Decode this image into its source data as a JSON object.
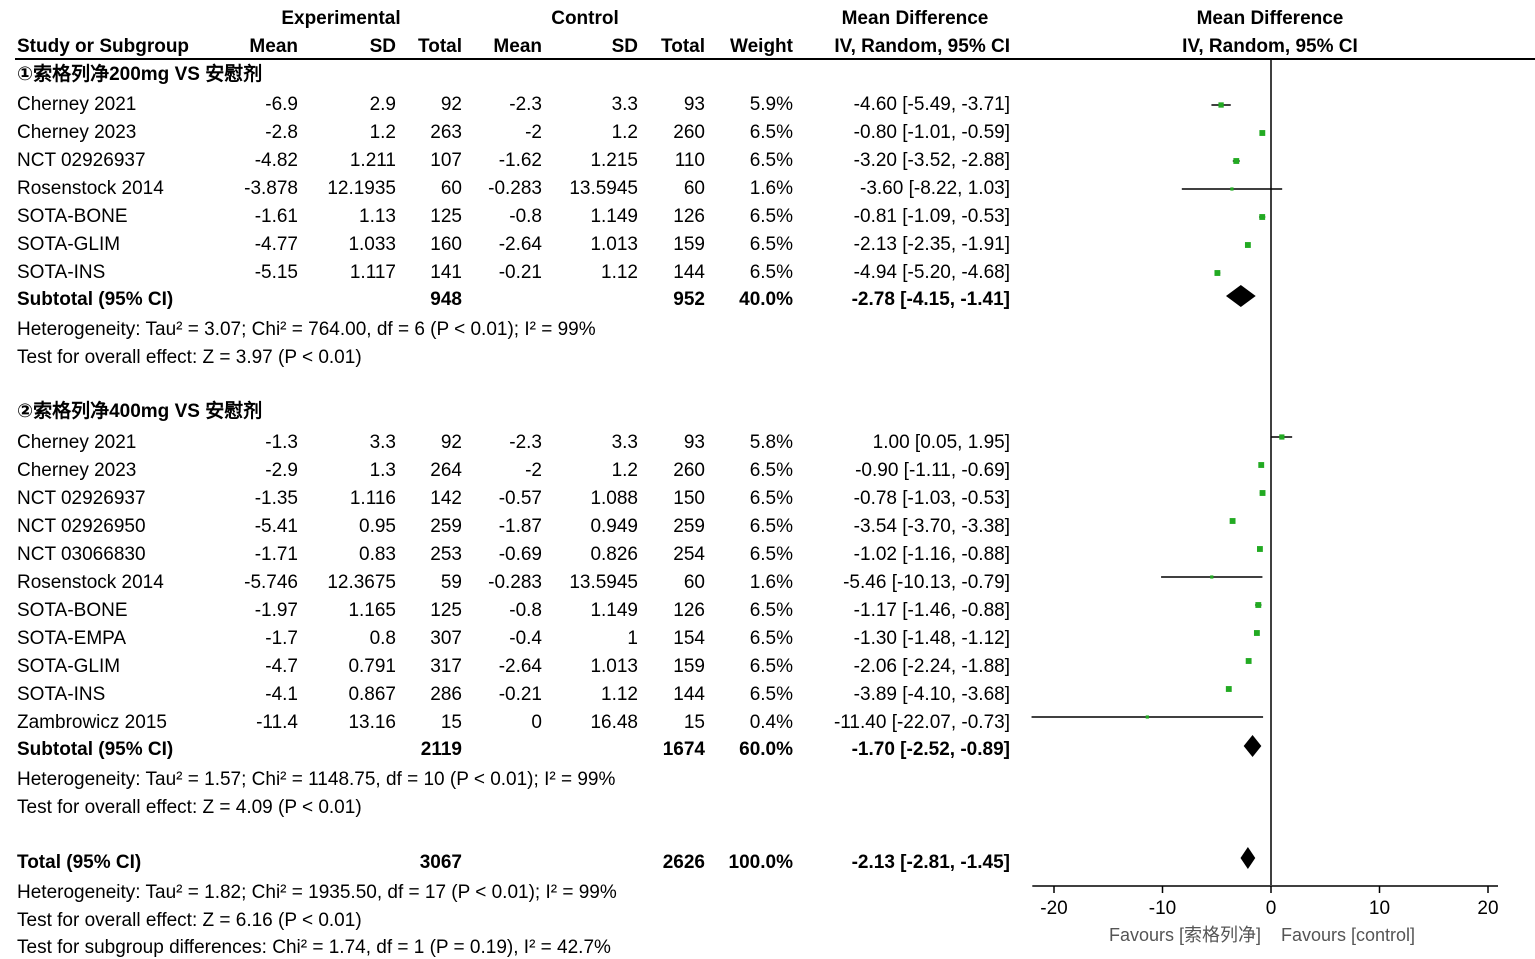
{
  "header": {
    "experimental": "Experimental",
    "control": "Control",
    "md_title": "Mean Difference",
    "plot_title": "Mean Difference",
    "col_study": "Study or Subgroup",
    "col_mean": "Mean",
    "col_sd": "SD",
    "col_total": "Total",
    "col_mean2": "Mean",
    "col_sd2": "SD",
    "col_total2": "Total",
    "col_weight": "Weight",
    "col_method": "IV, Random, 95% CI",
    "plot_method": "IV, Random, 95% CI"
  },
  "groups": [
    {
      "title": "①索格列净200mg VS 安慰剂",
      "studies": [
        {
          "name": "Cherney 2021",
          "e_mean": "-6.9",
          "e_sd": "2.9",
          "e_total": "92",
          "c_mean": "-2.3",
          "c_sd": "3.3",
          "c_total": "93",
          "weight": "5.9%",
          "ci": "-4.60 [-5.49, -3.71]",
          "md": -4.6,
          "lo": -5.49,
          "hi": -3.71
        },
        {
          "name": "Cherney 2023",
          "e_mean": "-2.8",
          "e_sd": "1.2",
          "e_total": "263",
          "c_mean": "-2",
          "c_sd": "1.2",
          "c_total": "260",
          "weight": "6.5%",
          "ci": "-0.80 [-1.01, -0.59]",
          "md": -0.8,
          "lo": -1.01,
          "hi": -0.59
        },
        {
          "name": "NCT 02926937",
          "e_mean": "-4.82",
          "e_sd": "1.211",
          "e_total": "107",
          "c_mean": "-1.62",
          "c_sd": "1.215",
          "c_total": "110",
          "weight": "6.5%",
          "ci": "-3.20 [-3.52, -2.88]",
          "md": -3.2,
          "lo": -3.52,
          "hi": -2.88
        },
        {
          "name": "Rosenstock 2014",
          "e_mean": "-3.878",
          "e_sd": "12.1935",
          "e_total": "60",
          "c_mean": "-0.283",
          "c_sd": "13.5945",
          "c_total": "60",
          "weight": "1.6%",
          "ci": "-3.60 [-8.22, 1.03]",
          "md": -3.6,
          "lo": -8.22,
          "hi": 1.03
        },
        {
          "name": "SOTA-BONE",
          "e_mean": "-1.61",
          "e_sd": "1.13",
          "e_total": "125",
          "c_mean": "-0.8",
          "c_sd": "1.149",
          "c_total": "126",
          "weight": "6.5%",
          "ci": "-0.81 [-1.09, -0.53]",
          "md": -0.81,
          "lo": -1.09,
          "hi": -0.53
        },
        {
          "name": "SOTA-GLIM",
          "e_mean": "-4.77",
          "e_sd": "1.033",
          "e_total": "160",
          "c_mean": "-2.64",
          "c_sd": "1.013",
          "c_total": "159",
          "weight": "6.5%",
          "ci": "-2.13 [-2.35, -1.91]",
          "md": -2.13,
          "lo": -2.35,
          "hi": -1.91
        },
        {
          "name": "SOTA-INS",
          "e_mean": "-5.15",
          "e_sd": "1.117",
          "e_total": "141",
          "c_mean": "-0.21",
          "c_sd": "1.12",
          "c_total": "144",
          "weight": "6.5%",
          "ci": "-4.94 [-5.20, -4.68]",
          "md": -4.94,
          "lo": -5.2,
          "hi": -4.68
        }
      ],
      "subtotal": {
        "label": "Subtotal (95% CI)",
        "e_total": "948",
        "c_total": "952",
        "weight": "40.0%",
        "ci": "-2.78 [-4.15, -1.41]",
        "md": -2.78,
        "lo": -4.15,
        "hi": -1.41
      },
      "heterogeneity": "Heterogeneity: Tau² = 3.07; Chi² = 764.00, df = 6 (P < 0.01); I² = 99%",
      "overall": "Test for overall effect: Z = 3.97 (P < 0.01)"
    },
    {
      "title": "②索格列净400mg VS 安慰剂",
      "studies": [
        {
          "name": "Cherney 2021",
          "e_mean": "-1.3",
          "e_sd": "3.3",
          "e_total": "92",
          "c_mean": "-2.3",
          "c_sd": "3.3",
          "c_total": "93",
          "weight": "5.8%",
          "ci": "1.00 [0.05, 1.95]",
          "md": 1.0,
          "lo": 0.05,
          "hi": 1.95
        },
        {
          "name": "Cherney 2023",
          "e_mean": "-2.9",
          "e_sd": "1.3",
          "e_total": "264",
          "c_mean": "-2",
          "c_sd": "1.2",
          "c_total": "260",
          "weight": "6.5%",
          "ci": "-0.90 [-1.11, -0.69]",
          "md": -0.9,
          "lo": -1.11,
          "hi": -0.69
        },
        {
          "name": "NCT 02926937",
          "e_mean": "-1.35",
          "e_sd": "1.116",
          "e_total": "142",
          "c_mean": "-0.57",
          "c_sd": "1.088",
          "c_total": "150",
          "weight": "6.5%",
          "ci": "-0.78 [-1.03, -0.53]",
          "md": -0.78,
          "lo": -1.03,
          "hi": -0.53
        },
        {
          "name": "NCT 02926950",
          "e_mean": "-5.41",
          "e_sd": "0.95",
          "e_total": "259",
          "c_mean": "-1.87",
          "c_sd": "0.949",
          "c_total": "259",
          "weight": "6.5%",
          "ci": "-3.54 [-3.70, -3.38]",
          "md": -3.54,
          "lo": -3.7,
          "hi": -3.38
        },
        {
          "name": "NCT 03066830",
          "e_mean": "-1.71",
          "e_sd": "0.83",
          "e_total": "253",
          "c_mean": "-0.69",
          "c_sd": "0.826",
          "c_total": "254",
          "weight": "6.5%",
          "ci": "-1.02 [-1.16, -0.88]",
          "md": -1.02,
          "lo": -1.16,
          "hi": -0.88
        },
        {
          "name": "Rosenstock 2014",
          "e_mean": "-5.746",
          "e_sd": "12.3675",
          "e_total": "59",
          "c_mean": "-0.283",
          "c_sd": "13.5945",
          "c_total": "60",
          "weight": "1.6%",
          "ci": "-5.46 [-10.13, -0.79]",
          "md": -5.46,
          "lo": -10.13,
          "hi": -0.79
        },
        {
          "name": "SOTA-BONE",
          "e_mean": "-1.97",
          "e_sd": "1.165",
          "e_total": "125",
          "c_mean": "-0.8",
          "c_sd": "1.149",
          "c_total": "126",
          "weight": "6.5%",
          "ci": "-1.17 [-1.46, -0.88]",
          "md": -1.17,
          "lo": -1.46,
          "hi": -0.88
        },
        {
          "name": "SOTA-EMPA",
          "e_mean": "-1.7",
          "e_sd": "0.8",
          "e_total": "307",
          "c_mean": "-0.4",
          "c_sd": "1",
          "c_total": "154",
          "weight": "6.5%",
          "ci": "-1.30 [-1.48, -1.12]",
          "md": -1.3,
          "lo": -1.48,
          "hi": -1.12
        },
        {
          "name": "SOTA-GLIM",
          "e_mean": "-4.7",
          "e_sd": "0.791",
          "e_total": "317",
          "c_mean": "-2.64",
          "c_sd": "1.013",
          "c_total": "159",
          "weight": "6.5%",
          "ci": "-2.06 [-2.24, -1.88]",
          "md": -2.06,
          "lo": -2.24,
          "hi": -1.88
        },
        {
          "name": "SOTA-INS",
          "e_mean": "-4.1",
          "e_sd": "0.867",
          "e_total": "286",
          "c_mean": "-0.21",
          "c_sd": "1.12",
          "c_total": "144",
          "weight": "6.5%",
          "ci": "-3.89 [-4.10, -3.68]",
          "md": -3.89,
          "lo": -4.1,
          "hi": -3.68
        },
        {
          "name": "Zambrowicz 2015",
          "e_mean": "-11.4",
          "e_sd": "13.16",
          "e_total": "15",
          "c_mean": "0",
          "c_sd": "16.48",
          "c_total": "15",
          "weight": "0.4%",
          "ci": "-11.40 [-22.07, -0.73]",
          "md": -11.4,
          "lo": -22.07,
          "hi": -0.73
        }
      ],
      "subtotal": {
        "label": "Subtotal (95% CI)",
        "e_total": "2119",
        "c_total": "1674",
        "weight": "60.0%",
        "ci": "-1.70 [-2.52, -0.89]",
        "md": -1.7,
        "lo": -2.52,
        "hi": -0.89
      },
      "heterogeneity": "Heterogeneity: Tau² = 1.57; Chi² = 1148.75, df = 10 (P < 0.01); I² = 99%",
      "overall": "Test for overall effect: Z = 4.09 (P < 0.01)"
    }
  ],
  "total": {
    "label": "Total (95% CI)",
    "e_total": "3067",
    "c_total": "2626",
    "weight": "100.0%",
    "ci": "-2.13 [-2.81, -1.45]",
    "md": -2.13,
    "lo": -2.81,
    "hi": -1.45,
    "heterogeneity": "Heterogeneity: Tau² = 1.82; Chi² = 1935.50, df = 17 (P < 0.01); I² = 99%",
    "overall": "Test for overall effect: Z = 6.16 (P < 0.01)",
    "subgroup": "Test for subgroup differences: Chi² = 1.74, df = 1 (P = 0.19), I² = 42.7%"
  },
  "axis": {
    "ticks": [
      -20,
      -10,
      0,
      10,
      20
    ],
    "xlim": [
      -22.07,
      24.5
    ],
    "favours_left": "Favours [索格列净]",
    "favours_right": "Favours [control]"
  },
  "colors": {
    "point": "#22aa22",
    "line": "#000000",
    "diamond": "#000000",
    "muted": "#555555"
  },
  "chart_data": {
    "type": "forest",
    "xlabel": "Mean Difference IV, Random, 95% CI",
    "xlim": [
      -22.07,
      24.5
    ],
    "ticks": [
      -20,
      -10,
      0,
      10,
      20
    ],
    "series": [
      {
        "name": "①索格列净200mg VS 安慰剂",
        "studies": [
          "Cherney 2021",
          "Cherney 2023",
          "NCT 02926937",
          "Rosenstock 2014",
          "SOTA-BONE",
          "SOTA-GLIM",
          "SOTA-INS"
        ],
        "md": [
          -4.6,
          -0.8,
          -3.2,
          -3.6,
          -0.81,
          -2.13,
          -4.94
        ],
        "lo": [
          -5.49,
          -1.01,
          -3.52,
          -8.22,
          -1.09,
          -2.35,
          -5.2
        ],
        "hi": [
          -3.71,
          -0.59,
          -2.88,
          1.03,
          -0.53,
          -1.91,
          -4.68
        ],
        "subtotal": {
          "md": -2.78,
          "lo": -4.15,
          "hi": -1.41
        }
      },
      {
        "name": "②索格列净400mg VS 安慰剂",
        "studies": [
          "Cherney 2021",
          "Cherney 2023",
          "NCT 02926937",
          "NCT 02926950",
          "NCT 03066830",
          "Rosenstock 2014",
          "SOTA-BONE",
          "SOTA-EMPA",
          "SOTA-GLIM",
          "SOTA-INS",
          "Zambrowicz 2015"
        ],
        "md": [
          1.0,
          -0.9,
          -0.78,
          -3.54,
          -1.02,
          -5.46,
          -1.17,
          -1.3,
          -2.06,
          -3.89,
          -11.4
        ],
        "lo": [
          0.05,
          -1.11,
          -1.03,
          -3.7,
          -1.16,
          -10.13,
          -1.46,
          -1.48,
          -2.24,
          -4.1,
          -22.07
        ],
        "hi": [
          1.95,
          -0.69,
          -0.53,
          -3.38,
          -0.88,
          -0.79,
          -0.88,
          -1.12,
          -1.88,
          -3.68,
          -0.73
        ],
        "subtotal": {
          "md": -1.7,
          "lo": -2.52,
          "hi": -0.89
        }
      }
    ],
    "total": {
      "md": -2.13,
      "lo": -2.81,
      "hi": -1.45
    }
  }
}
